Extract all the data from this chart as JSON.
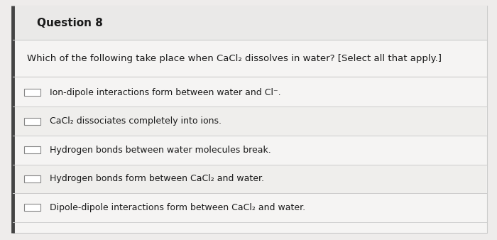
{
  "title": "Question 8",
  "question": "Which of the following take place when CaCl₂ dissolves in water? [Select all that apply.]",
  "options": [
    "Ion-dipole interactions form between water and Cl⁻.",
    "CaCl₂ dissociates completely into ions.",
    "Hydrogen bonds between water molecules break.",
    "Hydrogen bonds form between CaCl₂ and water.",
    "Dipole-dipole interactions form between CaCl₂ and water."
  ],
  "bg_color": "#eeeceb",
  "box_bg": "#f5f4f3",
  "border_color": "#cccccc",
  "title_fontsize": 11,
  "question_fontsize": 9.5,
  "option_fontsize": 9,
  "text_color": "#1a1a1a",
  "line_color": "#cccccc",
  "left_accent_color": "#444444"
}
